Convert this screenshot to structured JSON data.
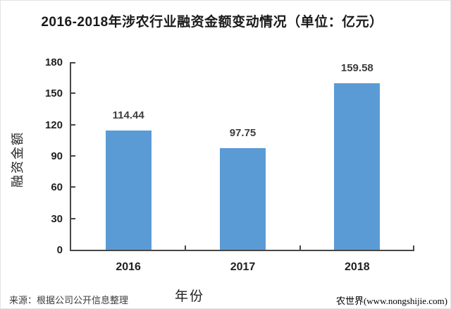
{
  "page": {
    "title": "2016-2018年涉农行业融资金额变动情况（单位：亿元）"
  },
  "chart_data": {
    "type": "bar",
    "title": "2016-2018年涉农行业融资金额变动情况（单位：亿元）",
    "categories": [
      "2016",
      "2017",
      "2018"
    ],
    "values": [
      114.44,
      97.75,
      159.58
    ],
    "value_labels": [
      "114.44",
      "97.75",
      "159.58"
    ],
    "xlabel": "年份",
    "ylabel": "融资金额",
    "ylim": [
      0,
      180
    ],
    "yticks": [
      0,
      30,
      60,
      90,
      120,
      150,
      180
    ],
    "grid": false,
    "legend": "none",
    "bar_color": "#5b9bd5",
    "axis_color": "#474747"
  },
  "footer": {
    "source": "来源：根据公司公开信息整理",
    "brand": "农世界(www.nongshijie.com)",
    "brand_color": "#96483b"
  }
}
